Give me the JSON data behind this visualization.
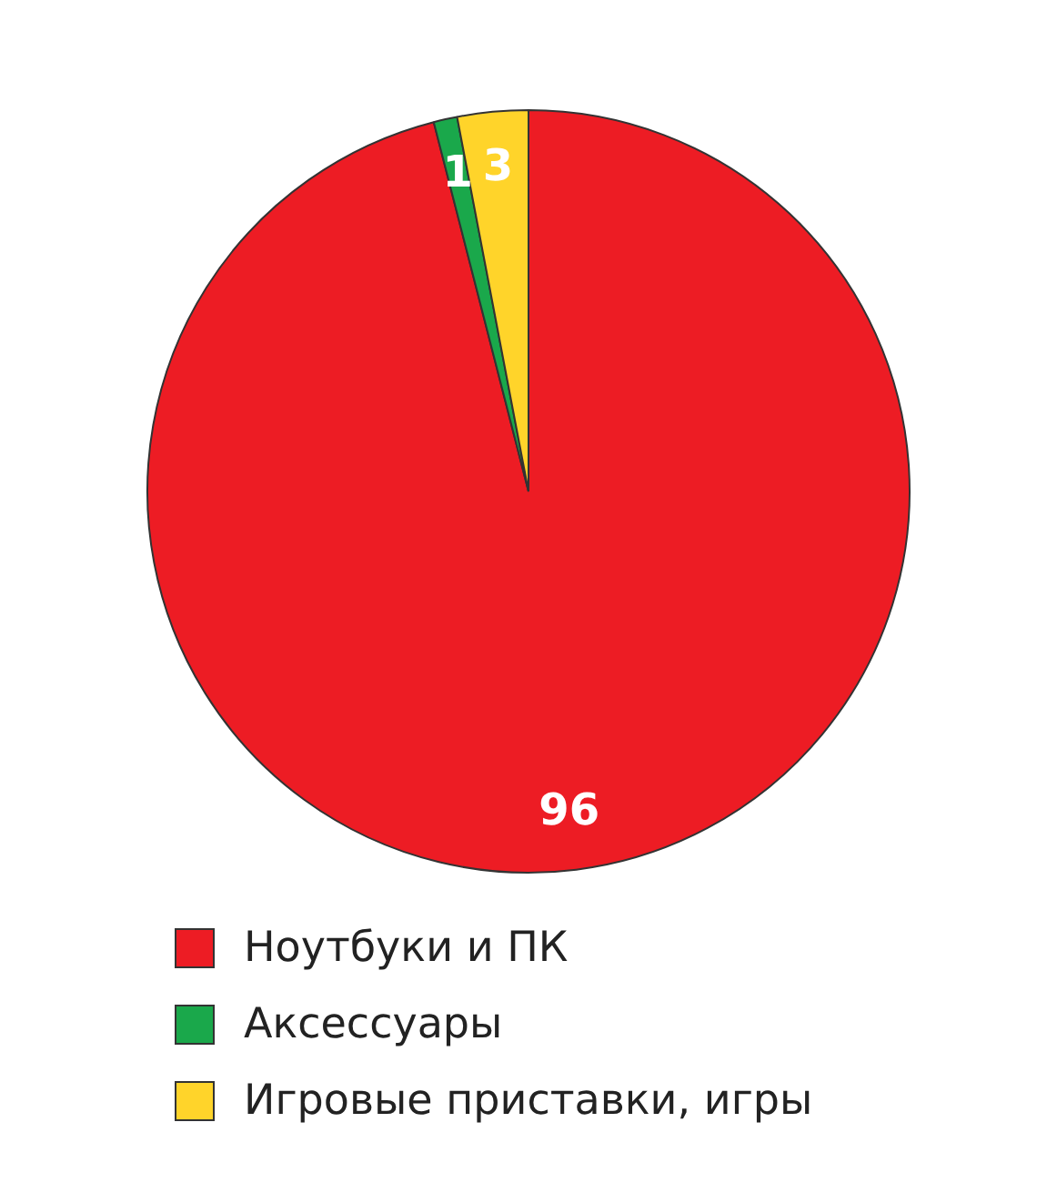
{
  "chart_data": {
    "type": "pie",
    "categories": [
      "Ноутбуки и ПК",
      "Аксессуары",
      "Игровые приставки, игры"
    ],
    "values": [
      96,
      1,
      3
    ],
    "colors": [
      "#ed1c24",
      "#1aa84b",
      "#ffd42a"
    ],
    "data_labels": true,
    "legend": "bottom"
  }
}
